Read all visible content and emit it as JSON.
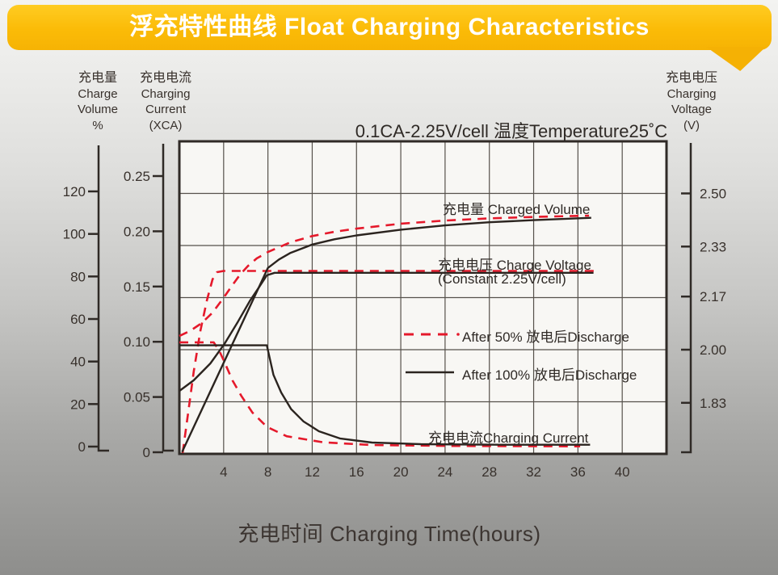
{
  "header": {
    "title": "浮充特性曲线 Float Charging Characteristics",
    "banner_color": "#fbbb07"
  },
  "axes_headers": {
    "volume": [
      "充电量",
      "Charge",
      "Volume",
      "%"
    ],
    "current": [
      "充电电流",
      "Charging",
      "Current",
      "(XCA)"
    ],
    "voltage": [
      "充电电压",
      "Charging",
      "Voltage",
      "(V)"
    ]
  },
  "condition_title": "0.1CA-2.25V/cell   温度Temperature25˚C",
  "x_title": "充电时间 Charging Time(hours)",
  "chart_data": {
    "type": "line",
    "title": "浮充特性曲线 Float Charging Characteristics",
    "condition": "0.1CA-2.25V/cell 温度Temperature25˚C",
    "x_axis": {
      "label": "充电时间 Charging Time(hours)",
      "min": 0,
      "max": 44,
      "grid_step": 4,
      "ticks": [
        4,
        8,
        12,
        16,
        20,
        24,
        28,
        32,
        36,
        40
      ]
    },
    "volume_axis": {
      "label": "充电量 Charge Volume %",
      "min": 0,
      "max": 120,
      "ticks": [
        "120",
        "100",
        "80",
        "60",
        "40",
        "20",
        "0"
      ]
    },
    "current_axis": {
      "label": "充电电流 Charging Current (XCA)",
      "min": 0,
      "max": 0.28,
      "ticks": [
        "0.25",
        "0.20",
        "0.15",
        "0.10",
        "0.05",
        "0"
      ]
    },
    "voltage_axis": {
      "label": "充电电压 Charging Voltage (V)",
      "min": 1.67,
      "max": 2.67,
      "ticks": [
        "2.50",
        "2.33",
        "2.17",
        "2.00",
        "1.83"
      ]
    },
    "grid": {
      "rows": 6,
      "cols": 11,
      "on": true
    },
    "curve_labels": {
      "volume": "充电量 Charged Volume",
      "voltage": "充电电压 Charge Voltage",
      "voltage_sub": "(Constant 2.25V/cell)",
      "current": "充电电流Charging Current"
    },
    "legend": [
      {
        "label": "After 50% 放电后Discharge",
        "color": "#e5192b",
        "dash": true
      },
      {
        "label": "After 100% 放电后Discharge",
        "color": "#2b241f",
        "dash": false
      }
    ],
    "series": [
      {
        "name": "charged-volume-after-50",
        "axis": "volume",
        "color": "#e5192b",
        "dash": true,
        "points": [
          [
            0,
            52
          ],
          [
            1,
            54.5
          ],
          [
            2,
            58
          ],
          [
            3,
            63
          ],
          [
            4,
            70
          ],
          [
            4.8,
            76
          ],
          [
            5.5,
            81
          ],
          [
            6.2,
            85
          ],
          [
            7,
            88.5
          ],
          [
            8,
            91.5
          ],
          [
            10,
            96
          ],
          [
            12,
            99
          ],
          [
            14,
            101
          ],
          [
            16,
            102.5
          ],
          [
            20,
            104.8
          ],
          [
            24,
            106.3
          ],
          [
            28,
            107.3
          ],
          [
            32,
            108
          ],
          [
            37,
            108.6
          ]
        ]
      },
      {
        "name": "charge-voltage-after-50",
        "axis": "voltage",
        "color": "#e5192b",
        "dash": true,
        "points": [
          [
            0.3,
            1.67
          ],
          [
            0.8,
            1.8
          ],
          [
            1.3,
            1.93
          ],
          [
            1.9,
            2.06
          ],
          [
            2.5,
            2.16
          ],
          [
            3.0,
            2.225
          ],
          [
            3.4,
            2.248
          ],
          [
            4,
            2.252
          ],
          [
            37.5,
            2.252
          ]
        ]
      },
      {
        "name": "charging-current-after-50",
        "axis": "xca",
        "color": "#e5192b",
        "dash": true,
        "points": [
          [
            0,
            0.0995
          ],
          [
            3.1,
            0.0995
          ],
          [
            3.6,
            0.092
          ],
          [
            4.1,
            0.081
          ],
          [
            4.8,
            0.065
          ],
          [
            5.6,
            0.051
          ],
          [
            6.6,
            0.036
          ],
          [
            7.9,
            0.023
          ],
          [
            9.7,
            0.0145
          ],
          [
            13,
            0.009
          ],
          [
            17.4,
            0.0065
          ],
          [
            25,
            0.0057
          ],
          [
            36.2,
            0.0053
          ]
        ]
      },
      {
        "name": "charged-volume-after-100",
        "axis": "volume",
        "color": "#2b241f",
        "dash": false,
        "points": [
          [
            0.25,
            -2.5
          ],
          [
            8,
            84
          ],
          [
            9,
            88
          ],
          [
            10,
            91
          ],
          [
            12,
            95
          ],
          [
            14,
            97.5
          ],
          [
            16,
            99.3
          ],
          [
            20,
            102
          ],
          [
            24,
            104
          ],
          [
            28,
            105.5
          ],
          [
            32,
            106.5
          ],
          [
            37.2,
            107.6
          ]
        ]
      },
      {
        "name": "charge-voltage-after-100",
        "axis": "voltage",
        "color": "#2b241f",
        "dash": false,
        "points": [
          [
            0,
            1.868
          ],
          [
            1.3,
            1.902
          ],
          [
            2.8,
            1.956
          ],
          [
            4.1,
            2.02
          ],
          [
            5.3,
            2.09
          ],
          [
            6.4,
            2.158
          ],
          [
            7.2,
            2.2
          ],
          [
            7.9,
            2.238
          ],
          [
            8.6,
            2.246
          ],
          [
            37.4,
            2.246
          ]
        ]
      },
      {
        "name": "charging-current-after-100",
        "axis": "xca",
        "color": "#2b241f",
        "dash": false,
        "points": [
          [
            0,
            0.0968
          ],
          [
            7.9,
            0.0968
          ],
          [
            8.5,
            0.07
          ],
          [
            9.2,
            0.054
          ],
          [
            10.1,
            0.039
          ],
          [
            11.2,
            0.028
          ],
          [
            12.6,
            0.019
          ],
          [
            14.5,
            0.0125
          ],
          [
            17.4,
            0.0088
          ],
          [
            21.8,
            0.0073
          ],
          [
            29,
            0.0068
          ],
          [
            37.1,
            0.0068
          ]
        ]
      }
    ]
  }
}
